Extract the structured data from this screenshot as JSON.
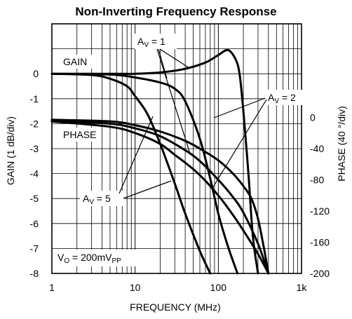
{
  "chart_data": {
    "type": "line",
    "title": "Non-Inverting Frequency Response",
    "xlabel": "FREQUENCY (MHz)",
    "ylabel_left": "GAIN (1 dB/div)",
    "ylabel_right": "PHASE (40 °/div)",
    "x_scale": "log",
    "xlim": [
      1,
      1000
    ],
    "x_ticks": [
      "1",
      "10",
      "100",
      "1k"
    ],
    "ylim_left": [
      -8,
      2
    ],
    "y_ticks_left": [
      "0",
      "-1",
      "-2",
      "-3",
      "-4",
      "-5",
      "-6",
      "-7",
      "-8"
    ],
    "ylim_right": [
      -200,
      120
    ],
    "y_ticks_right": [
      "0",
      "-40",
      "-80",
      "-120",
      "-160",
      "-200"
    ],
    "grid": true,
    "annotations": {
      "gain": "GAIN",
      "phase": "PHASE",
      "av1_main": "A",
      "av1_sub": "V",
      "av1_val": " = 1",
      "av2_main": "A",
      "av2_sub": "V",
      "av2_val": " = 2",
      "av5_main": "A",
      "av5_sub": "V",
      "av5_val": " = 5",
      "vo_main": "V",
      "vo_sub": "O",
      "vo_mid": " = 200mV",
      "vo_sub2": "PP"
    },
    "series": [
      {
        "axis": "gain",
        "gain_setting": 1,
        "x": [
          1,
          5,
          10,
          20,
          40,
          70,
          100,
          130,
          160,
          180,
          200,
          230,
          260,
          300
        ],
        "y": [
          0,
          0,
          0,
          0.05,
          0.2,
          0.45,
          0.75,
          0.95,
          0.6,
          0,
          -1.5,
          -4,
          -6.5,
          -8
        ]
      },
      {
        "axis": "gain",
        "gain_setting": 2,
        "x": [
          1,
          5,
          10,
          20,
          30,
          40,
          60,
          80,
          100,
          130,
          170
        ],
        "y": [
          0,
          -0.03,
          -0.15,
          -0.35,
          -0.6,
          -1.1,
          -2.6,
          -4.2,
          -5.6,
          -6.9,
          -8
        ]
      },
      {
        "axis": "gain",
        "gain_setting": 5,
        "x": [
          1,
          3,
          5,
          8,
          10,
          14,
          20,
          30,
          40,
          60,
          80
        ],
        "y": [
          0,
          -0.05,
          -0.2,
          -0.5,
          -0.9,
          -1.6,
          -2.8,
          -4.4,
          -5.6,
          -7.1,
          -8
        ]
      },
      {
        "axis": "phase",
        "gain_setting": 1,
        "x": [
          1,
          5,
          10,
          20,
          40,
          60,
          100,
          150,
          200,
          250,
          300,
          350,
          400
        ],
        "y": [
          -3,
          -5,
          -10,
          -18,
          -30,
          -40,
          -55,
          -72,
          -88,
          -104,
          -130,
          -165,
          -200
        ]
      },
      {
        "axis": "phase",
        "gain_setting": 2,
        "x": [
          1,
          5,
          10,
          20,
          40,
          60,
          100,
          150,
          200,
          300,
          400
        ],
        "y": [
          -4,
          -8,
          -14,
          -24,
          -42,
          -56,
          -80,
          -102,
          -122,
          -162,
          -200
        ]
      },
      {
        "axis": "phase",
        "gain_setting": 5,
        "x": [
          1,
          5,
          10,
          20,
          30,
          40,
          60,
          100,
          150,
          200,
          300,
          400
        ],
        "y": [
          -5,
          -12,
          -20,
          -34,
          -48,
          -58,
          -74,
          -100,
          -125,
          -145,
          -175,
          -200
        ]
      }
    ]
  }
}
